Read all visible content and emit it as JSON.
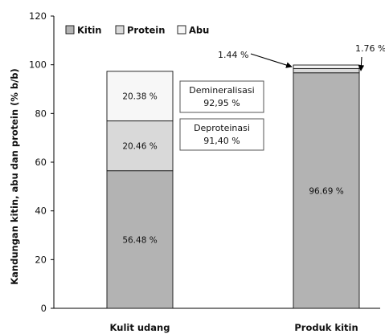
{
  "chart_data": {
    "type": "bar",
    "stacked": true,
    "categories": [
      "Kulit udang",
      "Produk kitin"
    ],
    "series": [
      {
        "name": "Kitin",
        "values": [
          56.48,
          96.69
        ],
        "labels": [
          "56.48 %",
          "96.69 %"
        ],
        "color": "#b3b3b3"
      },
      {
        "name": "Protein",
        "values": [
          20.46,
          1.76
        ],
        "labels": [
          "20.46 %",
          "1.76 %"
        ],
        "color": "#d9d9d9"
      },
      {
        "name": "Abu",
        "values": [
          20.38,
          1.44
        ],
        "labels": [
          "20.38 %",
          "1.44 %"
        ],
        "color": "#f7f7f7"
      }
    ],
    "ylabel": "Kandungan  kitin, abu dan protein  (% b/b)",
    "xlabel": "",
    "ylim": [
      0,
      120
    ],
    "yticks": [
      0,
      20,
      40,
      60,
      80,
      100,
      120
    ],
    "legend_position": "top-left",
    "grid": false,
    "annotations": [
      {
        "title": "Demineralisasi",
        "value": "92,95 %"
      },
      {
        "title": "Deproteinasi",
        "value": "91,40 %"
      }
    ]
  }
}
